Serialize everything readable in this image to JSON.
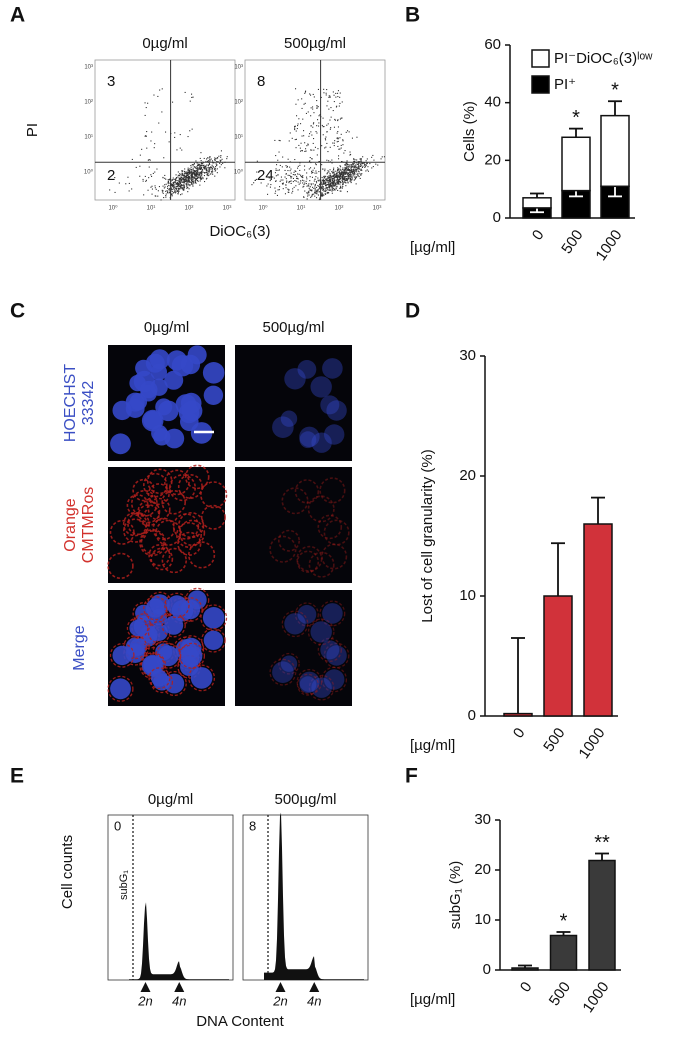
{
  "flow_cytometry": {
    "letter": "A",
    "columns": [
      "0µg/ml",
      "500µg/ml"
    ],
    "quadrants": [
      {
        "upper_left": 3,
        "lower_left": 2
      },
      {
        "upper_left": 8,
        "lower_left": 24
      }
    ],
    "ylabel": "PI",
    "xlabel": "DiOC₆(3)",
    "tick_labels": [
      "10⁰",
      "10¹",
      "10²",
      "10³"
    ]
  },
  "microscopy": {
    "letter": "C",
    "columns": [
      "0µg/ml",
      "500µg/ml"
    ],
    "rows": [
      {
        "lines": [
          "HOECHST",
          "33342"
        ],
        "color": "#3b4fc4"
      },
      {
        "lines": [
          "Orange",
          "CMTMRos"
        ],
        "color": "#d2322d"
      },
      {
        "lines": [
          "Merge"
        ],
        "color": "#3b4fc4"
      }
    ]
  },
  "cell_cycle": {
    "letter": "E",
    "columns": [
      "0µg/ml",
      "500µg/ml"
    ],
    "subg1_values": [
      0,
      8
    ],
    "ylabel": "Cell counts",
    "xlabel": "DNA Content",
    "gate_label": "subG₁",
    "peak_labels": [
      "2n",
      "4n"
    ]
  },
  "chart_data": [
    {
      "type": "bar",
      "panel": "B",
      "stacked": true,
      "ylabel": "Cells (%)",
      "xlabel": "[µg/ml]",
      "categories": [
        "0",
        "500",
        "1000"
      ],
      "ylim": [
        0,
        60
      ],
      "yticks": [
        0,
        20,
        40,
        60
      ],
      "series": [
        {
          "name": "PI⁻DiOC₆(3)ˡᵒʷ",
          "color": "#ffffff",
          "values": [
            3.5,
            18.5,
            24.5
          ],
          "errors": [
            1.5,
            3,
            5
          ]
        },
        {
          "name": "PI⁺",
          "color": "#000000",
          "values": [
            3.5,
            9.5,
            11
          ],
          "errors": [
            1.5,
            2,
            3.5
          ]
        }
      ],
      "annotations": [
        null,
        "*",
        "*"
      ]
    },
    {
      "type": "bar",
      "panel": "D",
      "ylabel": "Lost of cell granularity (%)",
      "xlabel": "[µg/ml]",
      "categories": [
        "0",
        "500",
        "1000"
      ],
      "ylim": [
        0,
        30
      ],
      "yticks": [
        0,
        10,
        20,
        30
      ],
      "values": [
        0.2,
        10,
        16
      ],
      "errors": [
        6.3,
        4.4,
        2.2
      ],
      "color": "#d1323a"
    },
    {
      "type": "bar",
      "panel": "F",
      "ylabel": "subG₁ (%)",
      "xlabel": "[µg/ml]",
      "categories": [
        "0",
        "500",
        "1000"
      ],
      "ylim": [
        0,
        30
      ],
      "yticks": [
        0,
        10,
        20,
        30
      ],
      "values": [
        0.4,
        6.9,
        21.9
      ],
      "errors": [
        0.5,
        0.7,
        1.4
      ],
      "color": "#3a3a3a",
      "annotations": [
        null,
        "*",
        "**"
      ]
    }
  ]
}
